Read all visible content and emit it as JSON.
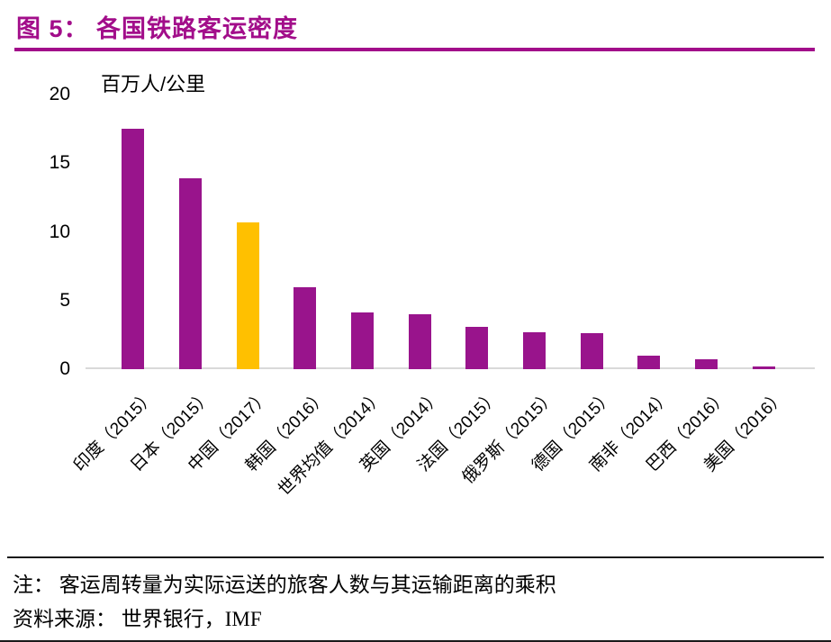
{
  "header": {
    "title": "图 5：  各国铁路客运密度"
  },
  "chart_data": {
    "type": "bar",
    "title": "各国铁路客运密度",
    "unit_label": "百万人/公里",
    "categories": [
      "印度（2015）",
      "日本（2015）",
      "中国（2017）",
      "韩国（2016）",
      "世界均值（2014）",
      "英国（2014）",
      "法国（2015）",
      "俄罗斯（2015）",
      "德国（2015）",
      "南非（2014）",
      "巴西（2016）",
      "美国（2016）"
    ],
    "values": [
      17.5,
      13.9,
      10.7,
      6.0,
      4.1,
      4.0,
      3.1,
      2.7,
      2.6,
      1.0,
      0.7,
      0.2
    ],
    "ylim": [
      0,
      20
    ],
    "yticks": [
      0,
      5,
      10,
      15,
      20
    ],
    "bar_color": "#99148C",
    "highlight_index": 2,
    "highlight_color": "#FFC000",
    "grid": "off",
    "legend": "none"
  },
  "notes": {
    "line1": "注： 客运周转量为实际运送的旅客人数与其运输距离的乘积",
    "line2": "资料来源： 世界银行，IMF"
  },
  "colors": {
    "accent": "#A20D8A",
    "axis_line": "#D9D9D9"
  }
}
